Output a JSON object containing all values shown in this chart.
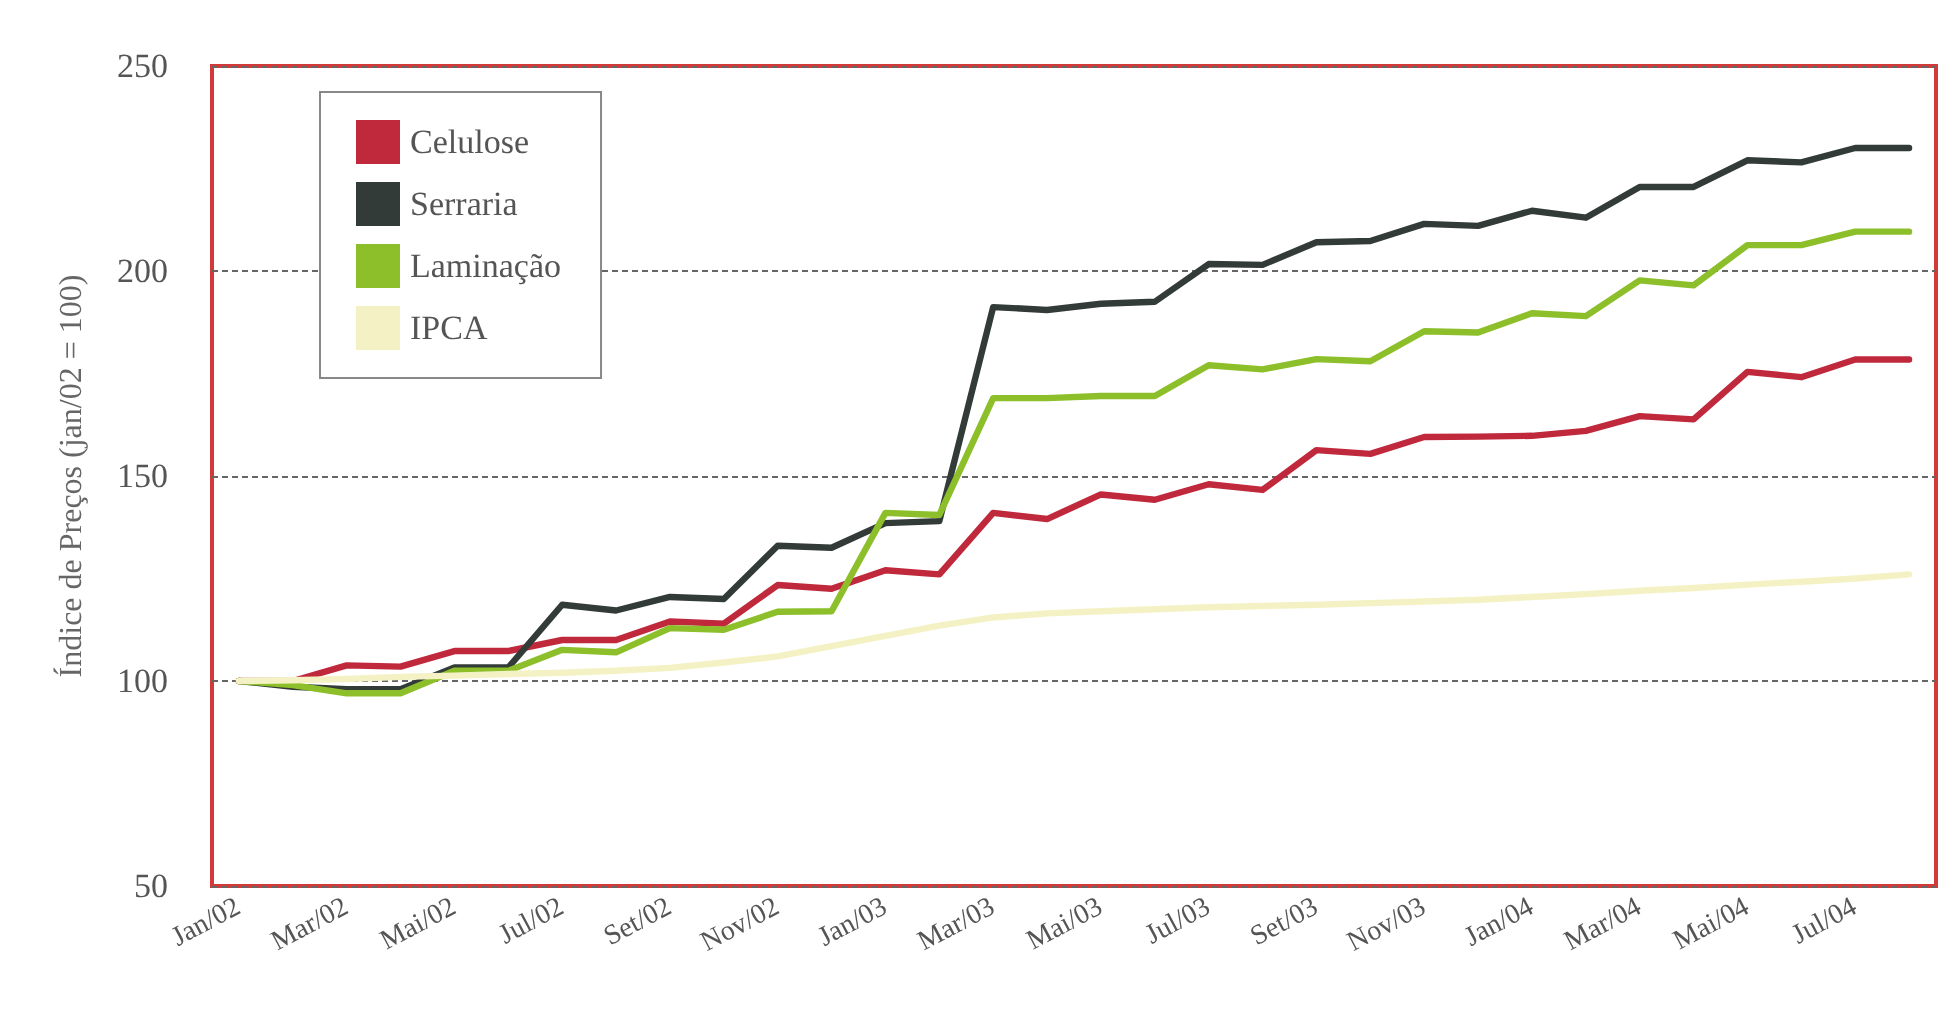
{
  "chart_data": {
    "type": "line",
    "ylabel": "Índice de Preços (jan/02 = 100)",
    "categories": [
      "Jan/02",
      null,
      "Mar/02",
      null,
      "Mai/02",
      null,
      "Jul/02",
      null,
      "Set/02",
      null,
      "Nov/02",
      null,
      "Jan/03",
      null,
      "Mar/03",
      null,
      "Mai/03",
      null,
      "Jul/03",
      null,
      "Set/03",
      null,
      "Nov/03",
      null,
      "Jan/04",
      null,
      "Mar/04",
      null,
      "Mai/04",
      null,
      "Jul/04",
      null
    ],
    "series": [
      {
        "name": "Celulose",
        "color": "#c0283c",
        "values": [
          100,
          100,
          103.8,
          103.5,
          107.3,
          107.3,
          110,
          110,
          114.5,
          114,
          123.4,
          122.5,
          127,
          126,
          141,
          139.5,
          145.5,
          144.2,
          148,
          146.6,
          156.3,
          155.4,
          159.5,
          159.6,
          159.8,
          161,
          164.6,
          163.8,
          175.4,
          174.1,
          178.4,
          178.4
        ]
      },
      {
        "name": "Serraria",
        "color": "#333b38",
        "values": [
          100,
          98.6,
          98,
          98,
          103.3,
          103.3,
          118.6,
          117.2,
          120.5,
          120,
          133,
          132.5,
          138.5,
          139,
          191.2,
          190.5,
          192,
          192.5,
          201.7,
          201.5,
          207,
          207.3,
          211.5,
          211,
          214.7,
          213,
          220.5,
          220.5,
          227,
          226.5,
          230,
          230
        ]
      },
      {
        "name": "Laminação",
        "color": "#8cbf2a",
        "values": [
          100,
          99,
          97,
          97,
          102.5,
          102.5,
          107.6,
          107,
          112.9,
          112.5,
          116.9,
          117,
          141,
          140.5,
          169,
          169,
          169.5,
          169.5,
          177,
          176,
          178.5,
          178,
          185.3,
          185,
          189.7,
          189,
          197.7,
          196.5,
          206.3,
          206.3,
          209.6,
          209.6
        ]
      },
      {
        "name": "IPCA",
        "color": "#f4f2c4",
        "values": [
          100,
          100.2,
          100.5,
          101,
          101.3,
          101.7,
          102,
          102.5,
          103.2,
          104.5,
          106,
          108.5,
          111,
          113.5,
          115.5,
          116.5,
          117,
          117.5,
          118,
          118.3,
          118.6,
          119,
          119.4,
          119.8,
          120.5,
          121.2,
          122,
          122.7,
          123.5,
          124.2,
          125,
          126
        ]
      }
    ],
    "ylim": [
      50,
      250
    ],
    "yticks": [
      50,
      100,
      150,
      200,
      250
    ],
    "grid": "y",
    "legend": "top left",
    "marker": "none",
    "line_style": "solid"
  }
}
